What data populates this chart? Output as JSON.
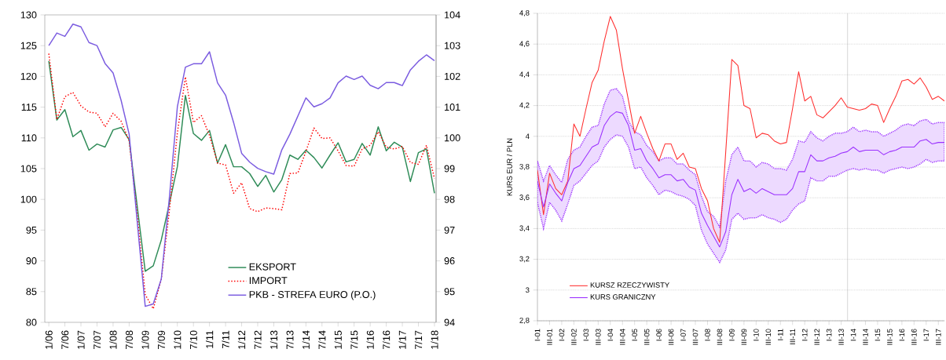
{
  "chart_data": [
    {
      "type": "line",
      "categories": [
        "1/06",
        null,
        "7/06",
        null,
        "1/07",
        null,
        "7/07",
        null,
        "1/08",
        null,
        "7/08",
        null,
        "1/09",
        null,
        "7/09",
        null,
        "1/10",
        null,
        "7/10",
        null,
        "1/11",
        null,
        "7/11",
        null,
        "1/12",
        null,
        "7/12",
        null,
        "1/13",
        null,
        "7/13",
        null,
        "1/14",
        null,
        "7/14",
        null,
        "1/15",
        null,
        "7/15",
        null,
        "1/16",
        null,
        "7/16",
        null,
        "1/17",
        null,
        "7/17",
        null,
        "1/18"
      ],
      "ylim": [
        80,
        130
      ],
      "yticks": [
        80,
        85,
        90,
        95,
        100,
        105,
        110,
        115,
        120,
        125,
        130
      ],
      "y2lim": [
        94,
        104
      ],
      "y2ticks": [
        94,
        95,
        96,
        97,
        98,
        99,
        100,
        101,
        102,
        103,
        104
      ],
      "legend": "bottom right",
      "series": [
        {
          "name": "EKSPORT",
          "color": "#2e8b57",
          "line_style": "solid",
          "values": [
            122.5,
            112.9,
            114.6,
            110.2,
            111.2,
            108.0,
            109.0,
            108.5,
            111.3,
            111.7,
            109.7,
            98.9,
            88.3,
            89.2,
            93.4,
            99.3,
            105.3,
            116.9,
            110.7,
            109.6,
            111.2,
            105.9,
            108.9,
            105.3,
            105.3,
            104.2,
            102.1,
            103.9,
            101.2,
            103.2,
            107.2,
            106.5,
            108.0,
            106.8,
            105.1,
            107.2,
            109.2,
            106.1,
            106.5,
            109.1,
            107.2,
            111.8,
            107.9,
            109.3,
            108.5,
            102.9,
            107.6,
            108.2,
            101.0
          ]
        },
        {
          "name": "IMPORT",
          "color": "#ff0000",
          "line_style": "dotted",
          "values": [
            123.7,
            113.0,
            116.7,
            117.4,
            115.2,
            114.2,
            114.0,
            111.8,
            114.0,
            112.7,
            109.5,
            97.6,
            84.5,
            82.2,
            87.0,
            98.1,
            110.8,
            119.9,
            112.5,
            113.6,
            110.4,
            105.9,
            105.6,
            101.0,
            102.7,
            98.5,
            98.0,
            98.6,
            98.5,
            98.3,
            104.2,
            104.3,
            107.8,
            111.6,
            109.9,
            110.0,
            107.9,
            105.5,
            105.4,
            108.2,
            108.8,
            111.0,
            108.5,
            108.2,
            108.6,
            106.0,
            105.7,
            108.8,
            103.4
          ]
        },
        {
          "name": "PKB - STREFA EURO (P.O.)",
          "color": "#7b5ce0",
          "line_style": "solid",
          "axis": "y2",
          "values": [
            103.0,
            103.41,
            103.3,
            103.7,
            103.61,
            103.1,
            103.0,
            102.42,
            102.11,
            101.22,
            100.12,
            97.28,
            94.52,
            94.6,
            95.41,
            98.04,
            101.01,
            102.3,
            102.41,
            102.41,
            102.8,
            101.79,
            101.39,
            100.5,
            99.5,
            99.21,
            99.01,
            98.9,
            98.82,
            99.61,
            100.12,
            100.71,
            101.3,
            101.01,
            101.11,
            101.3,
            101.79,
            102.01,
            101.9,
            102.01,
            101.71,
            101.6,
            101.8,
            101.8,
            101.7,
            102.21,
            102.49,
            102.7,
            102.51
          ]
        }
      ]
    },
    {
      "type": "line",
      "categories": [
        "I-01",
        null,
        "III-01",
        null,
        "I-02",
        null,
        "III-02",
        null,
        "I-03",
        null,
        "III-03",
        null,
        "I-04",
        null,
        "III-04",
        null,
        "I-05",
        null,
        "III-05",
        null,
        "I-06",
        null,
        "III-06",
        null,
        "I-07",
        null,
        "III-07",
        null,
        "I-08",
        null,
        "III-08",
        null,
        "I-09",
        null,
        "III-09",
        null,
        "I-10",
        null,
        "III-10",
        null,
        "I-11",
        null,
        "III-11",
        null,
        "I-12",
        null,
        "III-12",
        null,
        "I-13",
        null,
        "III-13",
        null,
        "I-14",
        null,
        "III-14",
        null,
        "I-15",
        null,
        "III-15",
        null,
        "I-16",
        null,
        "III-16",
        null,
        "I-17",
        null,
        "III-17",
        null
      ],
      "ylabel": "KURS EUR / PLN",
      "ylim": [
        2.8,
        4.8
      ],
      "yticks": [
        {
          "value": 2.8,
          "label": "2,8"
        },
        3,
        {
          "value": 3.2,
          "label": "3,2"
        },
        {
          "value": 3.4,
          "label": "3,4"
        },
        {
          "value": 3.6,
          "label": "3,6"
        },
        {
          "value": 3.8,
          "label": "3,8"
        },
        4,
        {
          "value": 4.2,
          "label": "4,2"
        },
        {
          "value": 4.4,
          "label": "4,4"
        },
        {
          "value": 4.6,
          "label": "4,6"
        },
        {
          "value": 4.8,
          "label": "4,8"
        }
      ],
      "grid": "y",
      "legend": "bottom left",
      "series": [
        {
          "name": "KURSZ RZECZYWISTY",
          "color": "#ff3030",
          "line_style": "solid",
          "values": [
            3.78,
            3.49,
            3.76,
            3.66,
            3.62,
            3.71,
            4.08,
            4.0,
            4.18,
            4.35,
            4.43,
            4.62,
            4.78,
            4.69,
            4.44,
            4.23,
            4.02,
            4.13,
            4.02,
            3.92,
            3.84,
            3.95,
            3.95,
            3.85,
            3.89,
            3.8,
            3.79,
            3.66,
            3.58,
            3.4,
            3.31,
            3.9,
            4.5,
            4.46,
            4.2,
            4.18,
            3.99,
            4.02,
            4.01,
            3.97,
            3.95,
            3.96,
            4.18,
            4.42,
            4.23,
            4.26,
            4.14,
            4.12,
            4.16,
            4.2,
            4.25,
            4.19,
            4.18,
            4.17,
            4.18,
            4.21,
            4.2,
            4.09,
            4.18,
            4.26,
            4.36,
            4.37,
            4.34,
            4.38,
            4.32,
            4.24,
            4.26,
            4.23
          ]
        },
        {
          "name": "KURS GRANICZNY",
          "color": "#9b30ff",
          "line_style": "solid",
          "values": [
            3.71,
            3.54,
            3.69,
            3.63,
            3.58,
            3.7,
            3.79,
            3.81,
            3.87,
            3.93,
            3.95,
            4.07,
            4.13,
            4.16,
            4.15,
            4.07,
            3.91,
            3.92,
            3.84,
            3.79,
            3.73,
            3.75,
            3.75,
            3.71,
            3.72,
            3.67,
            3.65,
            3.5,
            3.42,
            3.35,
            3.28,
            3.38,
            3.62,
            3.72,
            3.64,
            3.66,
            3.63,
            3.66,
            3.64,
            3.62,
            3.62,
            3.62,
            3.66,
            3.77,
            3.77,
            3.88,
            3.84,
            3.84,
            3.86,
            3.87,
            3.89,
            3.9,
            3.93,
            3.9,
            3.91,
            3.91,
            3.91,
            3.88,
            3.9,
            3.91,
            3.93,
            3.93,
            3.93,
            3.97,
            3.98,
            3.95,
            3.96,
            3.96
          ],
          "upper": [
            3.84,
            3.71,
            3.81,
            3.75,
            3.7,
            3.85,
            3.91,
            3.93,
            4.0,
            4.06,
            4.07,
            4.21,
            4.3,
            4.31,
            4.26,
            4.1,
            4.03,
            4.01,
            3.94,
            3.9,
            3.84,
            3.86,
            3.86,
            3.82,
            3.82,
            3.78,
            3.75,
            3.61,
            3.51,
            3.48,
            3.41,
            3.71,
            3.88,
            3.93,
            3.84,
            3.84,
            3.8,
            3.83,
            3.82,
            3.79,
            3.79,
            3.78,
            3.85,
            3.97,
            3.96,
            4.03,
            3.99,
            3.97,
            4.0,
            4.02,
            4.02,
            4.03,
            4.06,
            4.03,
            4.04,
            4.03,
            4.03,
            4.0,
            4.02,
            4.04,
            4.07,
            4.08,
            4.07,
            4.1,
            4.11,
            4.08,
            4.09,
            4.09
          ],
          "lower": [
            3.57,
            3.4,
            3.57,
            3.52,
            3.45,
            3.56,
            3.68,
            3.71,
            3.76,
            3.81,
            3.84,
            3.93,
            3.98,
            4.01,
            4.0,
            3.93,
            3.79,
            3.8,
            3.73,
            3.68,
            3.62,
            3.65,
            3.64,
            3.62,
            3.61,
            3.59,
            3.55,
            3.39,
            3.3,
            3.24,
            3.18,
            3.26,
            3.46,
            3.5,
            3.46,
            3.47,
            3.47,
            3.49,
            3.47,
            3.46,
            3.44,
            3.46,
            3.52,
            3.56,
            3.58,
            3.73,
            3.71,
            3.71,
            3.74,
            3.74,
            3.76,
            3.78,
            3.79,
            3.78,
            3.79,
            3.78,
            3.78,
            3.76,
            3.78,
            3.79,
            3.8,
            3.79,
            3.8,
            3.82,
            3.85,
            3.83,
            3.84,
            3.84
          ]
        }
      ]
    }
  ]
}
